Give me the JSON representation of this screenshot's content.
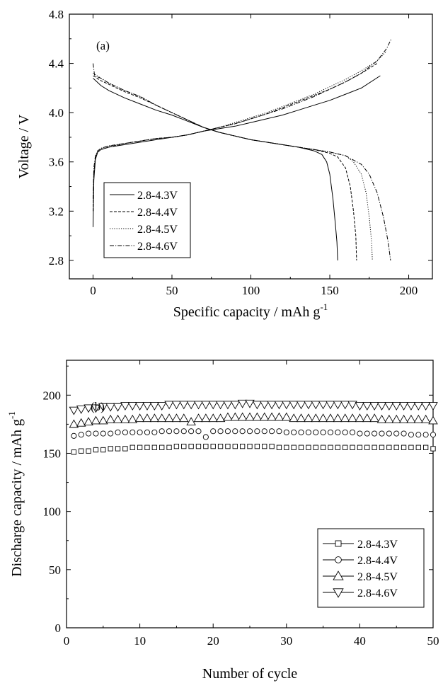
{
  "chart_data": [
    {
      "type": "line",
      "panel_label": "(a)",
      "xlabel": "Specific capacity / mAh g",
      "xlabel_sup": "-1",
      "ylabel": "Voltage / V",
      "xlim": [
        -15,
        215
      ],
      "ylim": [
        2.65,
        4.8
      ],
      "xticks": [
        0,
        50,
        100,
        150,
        200
      ],
      "yticks": [
        2.8,
        3.2,
        3.6,
        4.0,
        4.4,
        4.8
      ],
      "ytick_labels": [
        "2.8",
        "3.2",
        "3.6",
        "4.0",
        "4.4",
        "4.8"
      ],
      "legend_position": "lower-left",
      "series": [
        {
          "name": "2.8-4.3V",
          "dash": "solid",
          "charge": [
            [
              0,
              3.07
            ],
            [
              0.5,
              3.45
            ],
            [
              1.5,
              3.62
            ],
            [
              3,
              3.68
            ],
            [
              5,
              3.7
            ],
            [
              10,
              3.72
            ],
            [
              20,
              3.74
            ],
            [
              30,
              3.76
            ],
            [
              40,
              3.78
            ],
            [
              50,
              3.8
            ],
            [
              60,
              3.82
            ],
            [
              70,
              3.85
            ],
            [
              80,
              3.87
            ],
            [
              90,
              3.89
            ],
            [
              100,
              3.92
            ],
            [
              110,
              3.95
            ],
            [
              120,
              3.98
            ],
            [
              130,
              4.02
            ],
            [
              140,
              4.06
            ],
            [
              150,
              4.1
            ],
            [
              160,
              4.15
            ],
            [
              170,
              4.2
            ],
            [
              182,
              4.3
            ]
          ],
          "discharge": [
            [
              0,
              4.28
            ],
            [
              5,
              4.22
            ],
            [
              10,
              4.18
            ],
            [
              20,
              4.12
            ],
            [
              30,
              4.07
            ],
            [
              40,
              4.02
            ],
            [
              50,
              3.98
            ],
            [
              60,
              3.93
            ],
            [
              70,
              3.88
            ],
            [
              80,
              3.84
            ],
            [
              90,
              3.81
            ],
            [
              100,
              3.78
            ],
            [
              110,
              3.76
            ],
            [
              120,
              3.74
            ],
            [
              130,
              3.72
            ],
            [
              140,
              3.69
            ],
            [
              145,
              3.66
            ],
            [
              148,
              3.6
            ],
            [
              150,
              3.5
            ],
            [
              152,
              3.3
            ],
            [
              153.5,
              3.1
            ],
            [
              154.5,
              2.95
            ],
            [
              155,
              2.8
            ]
          ]
        },
        {
          "name": "2.8-4.4V",
          "dash": "dashed",
          "charge": [
            [
              0,
              3.2
            ],
            [
              0.5,
              3.5
            ],
            [
              1.5,
              3.63
            ],
            [
              3,
              3.68
            ],
            [
              5,
              3.7
            ],
            [
              10,
              3.72
            ],
            [
              20,
              3.75
            ],
            [
              30,
              3.77
            ],
            [
              40,
              3.79
            ],
            [
              50,
              3.8
            ],
            [
              60,
              3.82
            ],
            [
              70,
              3.85
            ],
            [
              80,
              3.88
            ],
            [
              90,
              3.91
            ],
            [
              100,
              3.95
            ],
            [
              110,
              3.99
            ],
            [
              120,
              4.04
            ],
            [
              130,
              4.09
            ],
            [
              140,
              4.14
            ],
            [
              150,
              4.19
            ],
            [
              160,
              4.25
            ],
            [
              170,
              4.32
            ],
            [
              180,
              4.4
            ]
          ],
          "discharge": [
            [
              0,
              4.3
            ],
            [
              5,
              4.26
            ],
            [
              10,
              4.23
            ],
            [
              20,
              4.17
            ],
            [
              30,
              4.12
            ],
            [
              40,
              4.06
            ],
            [
              50,
              4.0
            ],
            [
              60,
              3.94
            ],
            [
              70,
              3.88
            ],
            [
              80,
              3.84
            ],
            [
              90,
              3.81
            ],
            [
              100,
              3.78
            ],
            [
              110,
              3.76
            ],
            [
              120,
              3.74
            ],
            [
              130,
              3.72
            ],
            [
              140,
              3.7
            ],
            [
              150,
              3.67
            ],
            [
              155,
              3.64
            ],
            [
              160,
              3.55
            ],
            [
              163,
              3.4
            ],
            [
              165,
              3.2
            ],
            [
              166.5,
              3.0
            ],
            [
              167,
              2.8
            ]
          ]
        },
        {
          "name": "2.8-4.5V",
          "dash": "dotted",
          "charge": [
            [
              0,
              3.25
            ],
            [
              0.5,
              3.52
            ],
            [
              1.5,
              3.64
            ],
            [
              3,
              3.69
            ],
            [
              5,
              3.71
            ],
            [
              10,
              3.73
            ],
            [
              20,
              3.75
            ],
            [
              30,
              3.77
            ],
            [
              40,
              3.79
            ],
            [
              50,
              3.8
            ],
            [
              60,
              3.82
            ],
            [
              70,
              3.85
            ],
            [
              80,
              3.88
            ],
            [
              90,
              3.92
            ],
            [
              100,
              3.96
            ],
            [
              110,
              4.0
            ],
            [
              120,
              4.05
            ],
            [
              130,
              4.1
            ],
            [
              140,
              4.15
            ],
            [
              150,
              4.21
            ],
            [
              160,
              4.27
            ],
            [
              170,
              4.34
            ],
            [
              180,
              4.42
            ],
            [
              186,
              4.5
            ]
          ],
          "discharge": [
            [
              0,
              4.32
            ],
            [
              5,
              4.28
            ],
            [
              10,
              4.24
            ],
            [
              20,
              4.18
            ],
            [
              30,
              4.13
            ],
            [
              40,
              4.06
            ],
            [
              50,
              4.0
            ],
            [
              60,
              3.94
            ],
            [
              70,
              3.88
            ],
            [
              80,
              3.84
            ],
            [
              90,
              3.81
            ],
            [
              100,
              3.78
            ],
            [
              110,
              3.76
            ],
            [
              120,
              3.74
            ],
            [
              130,
              3.72
            ],
            [
              140,
              3.7
            ],
            [
              150,
              3.68
            ],
            [
              160,
              3.65
            ],
            [
              165,
              3.6
            ],
            [
              170,
              3.5
            ],
            [
              173,
              3.35
            ],
            [
              175,
              3.15
            ],
            [
              176.5,
              2.95
            ],
            [
              177,
              2.8
            ]
          ]
        },
        {
          "name": "2.8-4.6V",
          "dash": "dashdot",
          "charge": [
            [
              0,
              3.3
            ],
            [
              0.5,
              3.55
            ],
            [
              1.5,
              3.65
            ],
            [
              3,
              3.69
            ],
            [
              5,
              3.71
            ],
            [
              10,
              3.73
            ],
            [
              20,
              3.75
            ],
            [
              30,
              3.77
            ],
            [
              40,
              3.79
            ],
            [
              50,
              3.8
            ],
            [
              60,
              3.82
            ],
            [
              70,
              3.85
            ],
            [
              80,
              3.88
            ],
            [
              90,
              3.91
            ],
            [
              100,
              3.95
            ],
            [
              110,
              3.99
            ],
            [
              120,
              4.03
            ],
            [
              130,
              4.08
            ],
            [
              140,
              4.13
            ],
            [
              150,
              4.19
            ],
            [
              160,
              4.25
            ],
            [
              170,
              4.32
            ],
            [
              180,
              4.42
            ],
            [
              186,
              4.52
            ],
            [
              189,
              4.6
            ]
          ],
          "discharge": [
            [
              0,
              4.4
            ],
            [
              1,
              4.3
            ],
            [
              5,
              4.28
            ],
            [
              10,
              4.24
            ],
            [
              20,
              4.18
            ],
            [
              30,
              4.13
            ],
            [
              40,
              4.06
            ],
            [
              50,
              4.0
            ],
            [
              60,
              3.94
            ],
            [
              70,
              3.88
            ],
            [
              80,
              3.84
            ],
            [
              90,
              3.81
            ],
            [
              100,
              3.78
            ],
            [
              110,
              3.76
            ],
            [
              120,
              3.74
            ],
            [
              130,
              3.72
            ],
            [
              140,
              3.7
            ],
            [
              150,
              3.68
            ],
            [
              160,
              3.65
            ],
            [
              170,
              3.58
            ],
            [
              175,
              3.5
            ],
            [
              180,
              3.35
            ],
            [
              184,
              3.15
            ],
            [
              187,
              2.95
            ],
            [
              188.5,
              2.8
            ]
          ]
        }
      ]
    },
    {
      "type": "scatter",
      "panel_label": "(b)",
      "xlabel": "Number of cycle",
      "ylabel": "Discharge capacity / mAh g",
      "ylabel_sup": "-1",
      "xlim": [
        0,
        50
      ],
      "ylim": [
        0,
        230
      ],
      "xticks": [
        0,
        10,
        20,
        30,
        40,
        50
      ],
      "yticks": [
        0,
        50,
        100,
        150,
        200
      ],
      "legend_position": "lower-right",
      "series": [
        {
          "name": "2.8-4.3V",
          "marker": "square",
          "values": [
            151,
            152,
            152,
            153,
            153,
            154,
            154,
            154,
            155,
            155,
            155,
            155,
            155,
            155,
            156,
            156,
            156,
            156,
            156,
            156,
            156,
            156,
            156,
            156,
            156,
            156,
            156,
            156,
            155,
            155,
            155,
            155,
            155,
            155,
            155,
            155,
            155,
            155,
            155,
            155,
            155,
            155,
            155,
            155,
            155,
            155,
            155,
            155,
            155,
            154
          ]
        },
        {
          "name": "2.8-4.4V",
          "marker": "circle",
          "values": [
            165,
            166,
            167,
            167,
            167,
            167,
            168,
            168,
            168,
            168,
            168,
            168,
            169,
            169,
            169,
            169,
            169,
            169,
            164,
            169,
            169,
            169,
            169,
            169,
            169,
            169,
            169,
            169,
            169,
            168,
            168,
            168,
            168,
            168,
            168,
            168,
            168,
            168,
            168,
            167,
            167,
            167,
            167,
            167,
            167,
            167,
            166,
            166,
            166,
            166
          ]
        },
        {
          "name": "2.8-4.5V",
          "marker": "triangle-up",
          "values": [
            175,
            176,
            177,
            178,
            178,
            179,
            179,
            179,
            179,
            180,
            180,
            180,
            180,
            180,
            180,
            180,
            177,
            180,
            180,
            180,
            180,
            181,
            181,
            181,
            181,
            181,
            181,
            181,
            181,
            181,
            180,
            180,
            180,
            180,
            180,
            180,
            180,
            180,
            180,
            180,
            180,
            180,
            179,
            179,
            179,
            179,
            179,
            179,
            179,
            178
          ]
        },
        {
          "name": "2.8-4.6V",
          "marker": "triangle-down",
          "values": [
            187,
            188,
            189,
            189,
            190,
            190,
            190,
            191,
            191,
            191,
            191,
            191,
            191,
            192,
            192,
            192,
            192,
            192,
            192,
            192,
            192,
            192,
            192,
            193,
            193,
            192,
            192,
            192,
            192,
            192,
            192,
            192,
            192,
            192,
            192,
            192,
            192,
            192,
            192,
            191,
            191,
            191,
            191,
            191,
            191,
            191,
            191,
            191,
            191,
            191
          ]
        }
      ]
    }
  ]
}
